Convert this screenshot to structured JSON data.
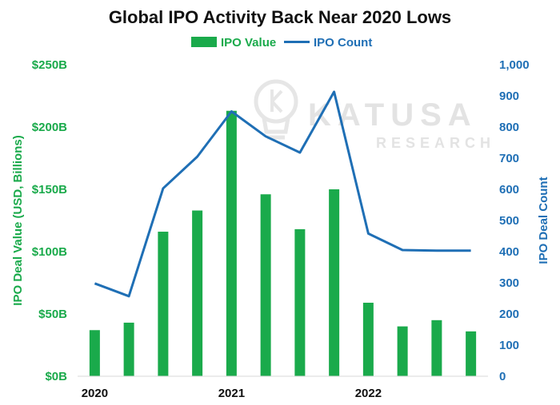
{
  "chart_data": {
    "type": "bar+line",
    "title": "Global IPO Activity Back Near 2020 Lows",
    "x_tick_labels": [
      "2020",
      "2021",
      "2022"
    ],
    "x_tick_positions": [
      0,
      4,
      8
    ],
    "series": [
      {
        "name": "IPO Value",
        "type": "bar",
        "axis": "left",
        "color": "#1aaa4b",
        "values": [
          37,
          43,
          116,
          133,
          213,
          146,
          118,
          150,
          59,
          40,
          45,
          36
        ]
      },
      {
        "name": "IPO Count",
        "type": "line",
        "axis": "right",
        "color": "#1f6fb5",
        "values": [
          298,
          257,
          603,
          705,
          850,
          770,
          718,
          913,
          458,
          405,
          403,
          403
        ]
      }
    ],
    "y_left": {
      "label": "IPO Deal Value (USD, Billions)",
      "range": [
        0,
        250
      ],
      "tick_values": [
        0,
        50,
        100,
        150,
        200,
        250
      ],
      "tick_labels": [
        "$0B",
        "$50B",
        "$100B",
        "$150B",
        "$200B",
        "$250B"
      ]
    },
    "y_right": {
      "label": "IPO Deal Count",
      "range": [
        0,
        1000
      ],
      "tick_values": [
        0,
        100,
        200,
        300,
        400,
        500,
        600,
        700,
        800,
        900,
        1000
      ],
      "tick_labels": [
        "0",
        "100",
        "200",
        "300",
        "400",
        "500",
        "600",
        "700",
        "800",
        "900",
        "1,000"
      ]
    },
    "legend_placement": "top-center",
    "grid": false
  },
  "watermark": {
    "line1": "KATUSA",
    "line2": "RESEARCH",
    "icon": "lightbulb-icon"
  }
}
